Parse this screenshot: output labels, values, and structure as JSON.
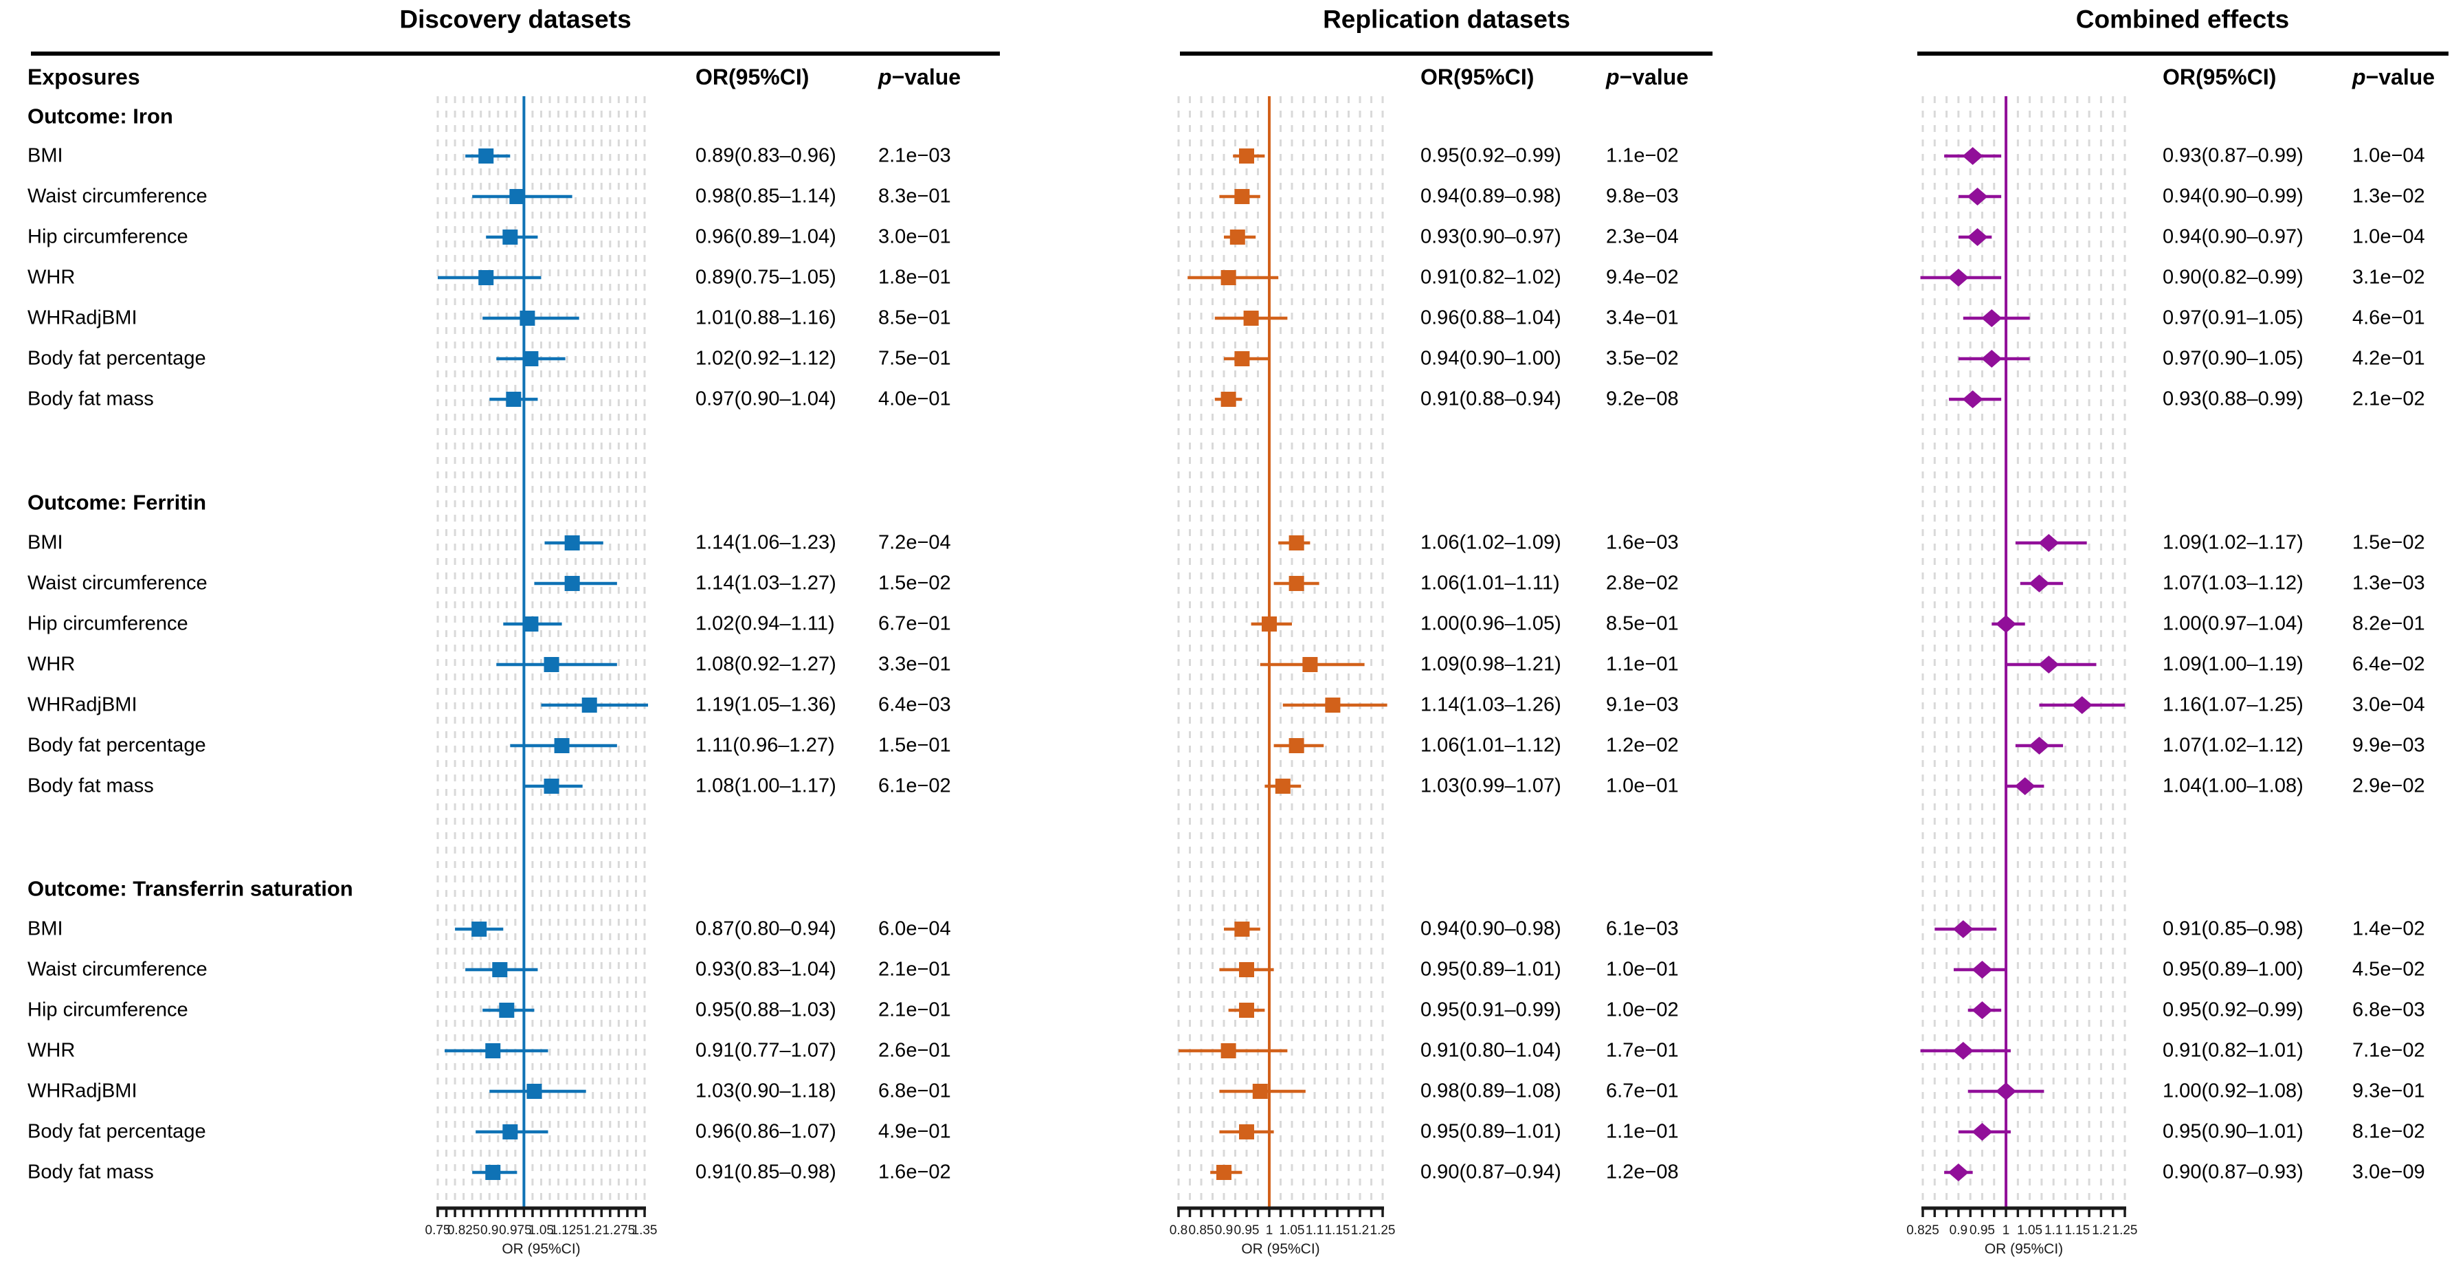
{
  "header": {
    "exposures": "Exposures"
  },
  "chart_data": {
    "type": "scatter",
    "subtype": "three-panel forest plot (odds ratios with 95% CI)",
    "grid": "dotted vertical minor gridlines",
    "grid_color": "#d9d9d9",
    "axis_color": "#1a1a1a",
    "row_groups": [
      {
        "label": "Outcome: Iron",
        "exposures": [
          "BMI",
          "Waist circumference",
          "Hip circumference",
          "WHR",
          "WHRadjBMI",
          "Body fat percentage",
          "Body fat mass"
        ]
      },
      {
        "label": "Outcome: Ferritin",
        "exposures": [
          "BMI",
          "Waist circumference",
          "Hip circumference",
          "WHR",
          "WHRadjBMI",
          "Body fat percentage",
          "Body fat mass"
        ]
      },
      {
        "label": "Outcome: Transferrin saturation",
        "exposures": [
          "BMI",
          "Waist circumference",
          "Hip circumference",
          "WHR",
          "WHRadjBMI",
          "Body fat percentage",
          "Body fat mass"
        ]
      }
    ],
    "panels": [
      {
        "title": "Discovery datasets",
        "or_header": "OR(95%CI)",
        "p_header_p": "p",
        "p_header_rest": "−value",
        "xlabel": "OR (95%CI)",
        "color": "#0f72b5",
        "marker": "square",
        "ref_line": 1,
        "xlim": [
          0.75,
          1.35
        ],
        "minor_step": 0.025,
        "xticks": [
          0.75,
          0.825,
          0.9,
          0.975,
          1.05,
          1.125,
          1.2,
          1.275,
          1.35
        ],
        "xtick_labels": [
          "0.75",
          "0.825",
          "0.9",
          "0.975",
          "1.05",
          "1.125",
          "1.2",
          "1.275",
          "1.35"
        ],
        "groups": [
          {
            "rows": [
              {
                "or": 0.89,
                "lo": 0.83,
                "hi": 0.96,
                "or_text": "0.89(0.83–0.96)",
                "p_text": "2.1e−03"
              },
              {
                "or": 0.98,
                "lo": 0.85,
                "hi": 1.14,
                "or_text": "0.98(0.85–1.14)",
                "p_text": "8.3e−01"
              },
              {
                "or": 0.96,
                "lo": 0.89,
                "hi": 1.04,
                "or_text": "0.96(0.89–1.04)",
                "p_text": "3.0e−01"
              },
              {
                "or": 0.89,
                "lo": 0.75,
                "hi": 1.05,
                "or_text": "0.89(0.75–1.05)",
                "p_text": "1.8e−01"
              },
              {
                "or": 1.01,
                "lo": 0.88,
                "hi": 1.16,
                "or_text": "1.01(0.88–1.16)",
                "p_text": "8.5e−01"
              },
              {
                "or": 1.02,
                "lo": 0.92,
                "hi": 1.12,
                "or_text": "1.02(0.92–1.12)",
                "p_text": "7.5e−01"
              },
              {
                "or": 0.97,
                "lo": 0.9,
                "hi": 1.04,
                "or_text": "0.97(0.90–1.04)",
                "p_text": "4.0e−01"
              }
            ]
          },
          {
            "rows": [
              {
                "or": 1.14,
                "lo": 1.06,
                "hi": 1.23,
                "or_text": "1.14(1.06–1.23)",
                "p_text": "7.2e−04"
              },
              {
                "or": 1.14,
                "lo": 1.03,
                "hi": 1.27,
                "or_text": "1.14(1.03–1.27)",
                "p_text": "1.5e−02"
              },
              {
                "or": 1.02,
                "lo": 0.94,
                "hi": 1.11,
                "or_text": "1.02(0.94–1.11)",
                "p_text": "6.7e−01"
              },
              {
                "or": 1.08,
                "lo": 0.92,
                "hi": 1.27,
                "or_text": "1.08(0.92–1.27)",
                "p_text": "3.3e−01"
              },
              {
                "or": 1.19,
                "lo": 1.05,
                "hi": 1.36,
                "or_text": "1.19(1.05–1.36)",
                "p_text": "6.4e−03"
              },
              {
                "or": 1.11,
                "lo": 0.96,
                "hi": 1.27,
                "or_text": "1.11(0.96–1.27)",
                "p_text": "1.5e−01"
              },
              {
                "or": 1.08,
                "lo": 1.0,
                "hi": 1.17,
                "or_text": "1.08(1.00–1.17)",
                "p_text": "6.1e−02"
              }
            ]
          },
          {
            "rows": [
              {
                "or": 0.87,
                "lo": 0.8,
                "hi": 0.94,
                "or_text": "0.87(0.80–0.94)",
                "p_text": "6.0e−04"
              },
              {
                "or": 0.93,
                "lo": 0.83,
                "hi": 1.04,
                "or_text": "0.93(0.83–1.04)",
                "p_text": "2.1e−01"
              },
              {
                "or": 0.95,
                "lo": 0.88,
                "hi": 1.03,
                "or_text": "0.95(0.88–1.03)",
                "p_text": "2.1e−01"
              },
              {
                "or": 0.91,
                "lo": 0.77,
                "hi": 1.07,
                "or_text": "0.91(0.77–1.07)",
                "p_text": "2.6e−01"
              },
              {
                "or": 1.03,
                "lo": 0.9,
                "hi": 1.18,
                "or_text": "1.03(0.90–1.18)",
                "p_text": "6.8e−01"
              },
              {
                "or": 0.96,
                "lo": 0.86,
                "hi": 1.07,
                "or_text": "0.96(0.86–1.07)",
                "p_text": "4.9e−01"
              },
              {
                "or": 0.91,
                "lo": 0.85,
                "hi": 0.98,
                "or_text": "0.91(0.85–0.98)",
                "p_text": "1.6e−02"
              }
            ]
          }
        ]
      },
      {
        "title": "Replication datasets",
        "or_header": "OR(95%CI)",
        "p_header_p": "p",
        "p_header_rest": "−value",
        "xlabel": "OR (95%CI)",
        "color": "#d2611a",
        "marker": "square",
        "ref_line": 1,
        "xlim": [
          0.8,
          1.25
        ],
        "minor_step": 0.025,
        "xticks": [
          0.8,
          0.85,
          0.9,
          0.95,
          1,
          1.05,
          1.1,
          1.15,
          1.2,
          1.25
        ],
        "xtick_labels": [
          "0.8",
          "0.85",
          "0.9",
          "0.95",
          "1",
          "1.05",
          "1.1",
          "1.15",
          "1.2",
          "1.25"
        ],
        "groups": [
          {
            "rows": [
              {
                "or": 0.95,
                "lo": 0.92,
                "hi": 0.99,
                "or_text": "0.95(0.92–0.99)",
                "p_text": "1.1e−02"
              },
              {
                "or": 0.94,
                "lo": 0.89,
                "hi": 0.98,
                "or_text": "0.94(0.89–0.98)",
                "p_text": "9.8e−03"
              },
              {
                "or": 0.93,
                "lo": 0.9,
                "hi": 0.97,
                "or_text": "0.93(0.90–0.97)",
                "p_text": "2.3e−04"
              },
              {
                "or": 0.91,
                "lo": 0.82,
                "hi": 1.02,
                "or_text": "0.91(0.82–1.02)",
                "p_text": "9.4e−02"
              },
              {
                "or": 0.96,
                "lo": 0.88,
                "hi": 1.04,
                "or_text": "0.96(0.88–1.04)",
                "p_text": "3.4e−01"
              },
              {
                "or": 0.94,
                "lo": 0.9,
                "hi": 1.0,
                "or_text": "0.94(0.90–1.00)",
                "p_text": "3.5e−02"
              },
              {
                "or": 0.91,
                "lo": 0.88,
                "hi": 0.94,
                "or_text": "0.91(0.88–0.94)",
                "p_text": "9.2e−08"
              }
            ]
          },
          {
            "rows": [
              {
                "or": 1.06,
                "lo": 1.02,
                "hi": 1.09,
                "or_text": "1.06(1.02–1.09)",
                "p_text": "1.6e−03"
              },
              {
                "or": 1.06,
                "lo": 1.01,
                "hi": 1.11,
                "or_text": "1.06(1.01–1.11)",
                "p_text": "2.8e−02"
              },
              {
                "or": 1.0,
                "lo": 0.96,
                "hi": 1.05,
                "or_text": "1.00(0.96–1.05)",
                "p_text": "8.5e−01"
              },
              {
                "or": 1.09,
                "lo": 0.98,
                "hi": 1.21,
                "or_text": "1.09(0.98–1.21)",
                "p_text": "1.1e−01"
              },
              {
                "or": 1.14,
                "lo": 1.03,
                "hi": 1.26,
                "or_text": "1.14(1.03–1.26)",
                "p_text": "9.1e−03"
              },
              {
                "or": 1.06,
                "lo": 1.01,
                "hi": 1.12,
                "or_text": "1.06(1.01–1.12)",
                "p_text": "1.2e−02"
              },
              {
                "or": 1.03,
                "lo": 0.99,
                "hi": 1.07,
                "or_text": "1.03(0.99–1.07)",
                "p_text": "1.0e−01"
              }
            ]
          },
          {
            "rows": [
              {
                "or": 0.94,
                "lo": 0.9,
                "hi": 0.98,
                "or_text": "0.94(0.90–0.98)",
                "p_text": "6.1e−03"
              },
              {
                "or": 0.95,
                "lo": 0.89,
                "hi": 1.01,
                "or_text": "0.95(0.89–1.01)",
                "p_text": "1.0e−01"
              },
              {
                "or": 0.95,
                "lo": 0.91,
                "hi": 0.99,
                "or_text": "0.95(0.91–0.99)",
                "p_text": "1.0e−02"
              },
              {
                "or": 0.91,
                "lo": 0.8,
                "hi": 1.04,
                "or_text": "0.91(0.80–1.04)",
                "p_text": "1.7e−01"
              },
              {
                "or": 0.98,
                "lo": 0.89,
                "hi": 1.08,
                "or_text": "0.98(0.89–1.08)",
                "p_text": "6.7e−01"
              },
              {
                "or": 0.95,
                "lo": 0.89,
                "hi": 1.01,
                "or_text": "0.95(0.89–1.01)",
                "p_text": "1.1e−01"
              },
              {
                "or": 0.9,
                "lo": 0.87,
                "hi": 0.94,
                "or_text": "0.90(0.87–0.94)",
                "p_text": "1.2e−08"
              }
            ]
          }
        ]
      },
      {
        "title": "Combined effects",
        "or_header": "OR(95%CI)",
        "p_header_p": "p",
        "p_header_rest": "−value",
        "xlabel": "OR (95%CI)",
        "color": "#910f99",
        "marker": "diamond",
        "ref_line": 1,
        "xlim": [
          0.825,
          1.25
        ],
        "minor_step": 0.025,
        "xticks": [
          0.825,
          0.9,
          0.95,
          1,
          1.05,
          1.1,
          1.15,
          1.2,
          1.25
        ],
        "xtick_labels": [
          "0.825",
          "0.9",
          "0.95",
          "1",
          "1.05",
          "1.1",
          "1.15",
          "1.2",
          "1.25"
        ],
        "groups": [
          {
            "rows": [
              {
                "or": 0.93,
                "lo": 0.87,
                "hi": 0.99,
                "or_text": "0.93(0.87–0.99)",
                "p_text": "1.0e−04"
              },
              {
                "or": 0.94,
                "lo": 0.9,
                "hi": 0.99,
                "or_text": "0.94(0.90–0.99)",
                "p_text": "1.3e−02"
              },
              {
                "or": 0.94,
                "lo": 0.9,
                "hi": 0.97,
                "or_text": "0.94(0.90–0.97)",
                "p_text": "1.0e−04"
              },
              {
                "or": 0.9,
                "lo": 0.82,
                "hi": 0.99,
                "or_text": "0.90(0.82–0.99)",
                "p_text": "3.1e−02"
              },
              {
                "or": 0.97,
                "lo": 0.91,
                "hi": 1.05,
                "or_text": "0.97(0.91–1.05)",
                "p_text": "4.6e−01"
              },
              {
                "or": 0.97,
                "lo": 0.9,
                "hi": 1.05,
                "or_text": "0.97(0.90–1.05)",
                "p_text": "4.2e−01"
              },
              {
                "or": 0.93,
                "lo": 0.88,
                "hi": 0.99,
                "or_text": "0.93(0.88–0.99)",
                "p_text": "2.1e−02"
              }
            ]
          },
          {
            "rows": [
              {
                "or": 1.09,
                "lo": 1.02,
                "hi": 1.17,
                "or_text": "1.09(1.02–1.17)",
                "p_text": "1.5e−02"
              },
              {
                "or": 1.07,
                "lo": 1.03,
                "hi": 1.12,
                "or_text": "1.07(1.03–1.12)",
                "p_text": "1.3e−03"
              },
              {
                "or": 1.0,
                "lo": 0.97,
                "hi": 1.04,
                "or_text": "1.00(0.97–1.04)",
                "p_text": "8.2e−01"
              },
              {
                "or": 1.09,
                "lo": 1.0,
                "hi": 1.19,
                "or_text": "1.09(1.00–1.19)",
                "p_text": "6.4e−02"
              },
              {
                "or": 1.16,
                "lo": 1.07,
                "hi": 1.25,
                "or_text": "1.16(1.07–1.25)",
                "p_text": "3.0e−04"
              },
              {
                "or": 1.07,
                "lo": 1.02,
                "hi": 1.12,
                "or_text": "1.07(1.02–1.12)",
                "p_text": "9.9e−03"
              },
              {
                "or": 1.04,
                "lo": 1.0,
                "hi": 1.08,
                "or_text": "1.04(1.00–1.08)",
                "p_text": "2.9e−02"
              }
            ]
          },
          {
            "rows": [
              {
                "or": 0.91,
                "lo": 0.85,
                "hi": 0.98,
                "or_text": "0.91(0.85–0.98)",
                "p_text": "1.4e−02"
              },
              {
                "or": 0.95,
                "lo": 0.89,
                "hi": 1.0,
                "or_text": "0.95(0.89–1.00)",
                "p_text": "4.5e−02"
              },
              {
                "or": 0.95,
                "lo": 0.92,
                "hi": 0.99,
                "or_text": "0.95(0.92–0.99)",
                "p_text": "6.8e−03"
              },
              {
                "or": 0.91,
                "lo": 0.82,
                "hi": 1.01,
                "or_text": "0.91(0.82–1.01)",
                "p_text": "7.1e−02"
              },
              {
                "or": 1.0,
                "lo": 0.92,
                "hi": 1.08,
                "or_text": "1.00(0.92–1.08)",
                "p_text": "9.3e−01"
              },
              {
                "or": 0.95,
                "lo": 0.9,
                "hi": 1.01,
                "or_text": "0.95(0.90–1.01)",
                "p_text": "8.1e−02"
              },
              {
                "or": 0.9,
                "lo": 0.87,
                "hi": 0.93,
                "or_text": "0.90(0.87–0.93)",
                "p_text": "3.0e−09"
              }
            ]
          }
        ]
      }
    ]
  }
}
